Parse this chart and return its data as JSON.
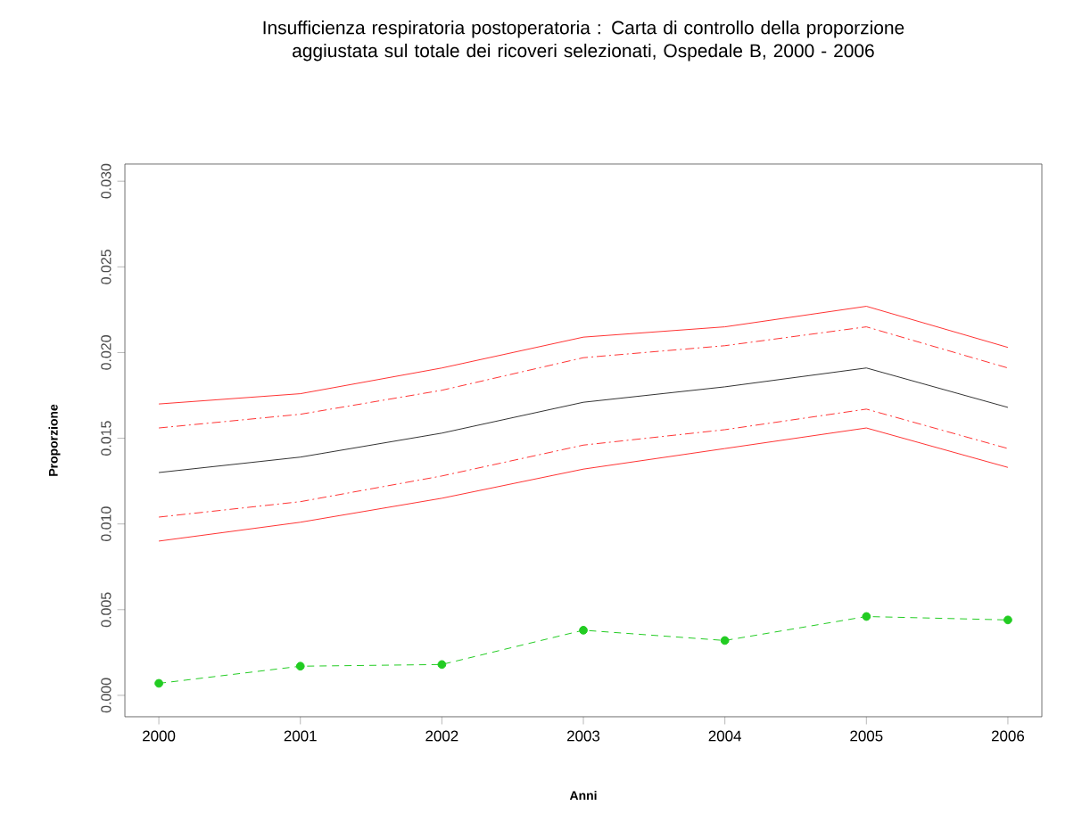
{
  "chart_data": {
    "type": "line",
    "title": "Insufficienza respiratoria postoperatoria : Carta di controllo della proporzione aggiustata sul totale dei ricoveri selezionati, Ospedale B, 2000 - 2006",
    "xlabel": "Anni",
    "ylabel": "Proporzione",
    "x": [
      2000,
      2001,
      2002,
      2003,
      2004,
      2005,
      2006
    ],
    "series": [
      {
        "color": "#ff3333",
        "line_style": "solid",
        "marker": "none",
        "values": [
          0.017,
          0.0176,
          0.0191,
          0.0209,
          0.0215,
          0.0227,
          0.0203
        ]
      },
      {
        "color": "#ff3333",
        "line_style": "dashdot",
        "marker": "none",
        "values": [
          0.0156,
          0.0164,
          0.0178,
          0.0197,
          0.0204,
          0.0215,
          0.0191
        ]
      },
      {
        "color": "#333333",
        "line_style": "solid",
        "marker": "none",
        "values": [
          0.013,
          0.0139,
          0.0153,
          0.0171,
          0.018,
          0.0191,
          0.0168
        ]
      },
      {
        "color": "#ff3333",
        "line_style": "dashdot",
        "marker": "none",
        "values": [
          0.0104,
          0.0113,
          0.0128,
          0.0146,
          0.0155,
          0.0167,
          0.0144
        ]
      },
      {
        "color": "#ff3333",
        "line_style": "solid",
        "marker": "none",
        "values": [
          0.009,
          0.0101,
          0.0115,
          0.0132,
          0.0144,
          0.0156,
          0.0133
        ]
      },
      {
        "color": "#22cc22",
        "line_style": "dashed",
        "marker": "circle",
        "values": [
          0.0007,
          0.0017,
          0.0018,
          0.0038,
          0.0032,
          0.0046,
          0.0044
        ]
      }
    ],
    "xlim": [
      1999.76,
      2006.24
    ],
    "ylim": [
      -0.00125,
      0.031
    ],
    "xticks": [
      2000,
      2001,
      2002,
      2003,
      2004,
      2005,
      2006
    ],
    "yticks": [
      {
        "value": 0,
        "label": "0.000"
      },
      {
        "value": 0.005,
        "label": "0.005"
      },
      {
        "value": 0.01,
        "label": "0.010"
      },
      {
        "value": 0.015,
        "label": "0.015"
      },
      {
        "value": 0.02,
        "label": "0.020"
      },
      {
        "value": 0.025,
        "label": "0.025"
      },
      {
        "value": 0.03,
        "label": "0.030"
      }
    ],
    "grid": false
  }
}
